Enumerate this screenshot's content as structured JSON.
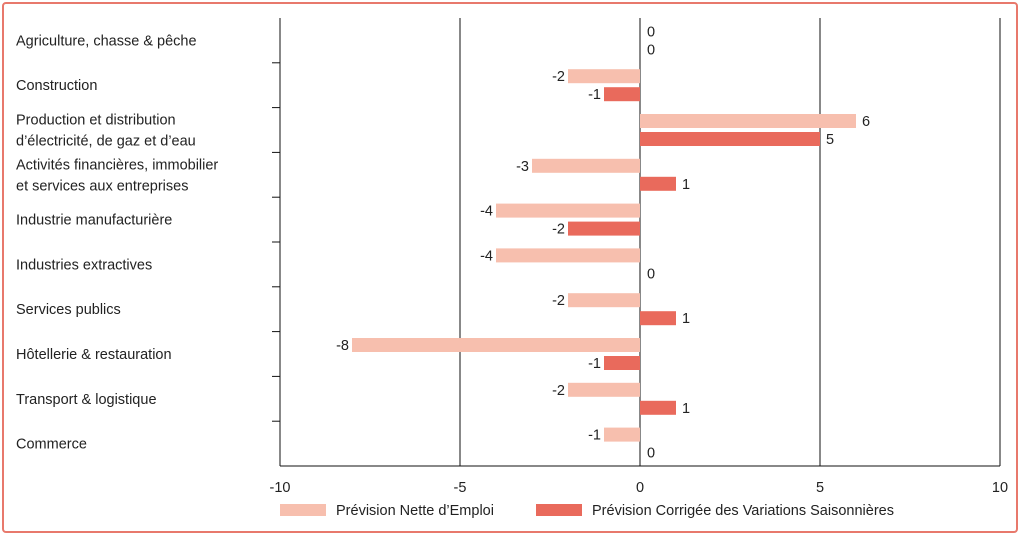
{
  "chart_data": {
    "type": "bar",
    "orientation": "horizontal",
    "categories": [
      [
        "Agriculture, chasse & pêche"
      ],
      [
        "Construction"
      ],
      [
        "Production et distribution",
        "d’électricité, de gaz et d’eau"
      ],
      [
        "Activités financières, immobilier",
        "et services aux entreprises"
      ],
      [
        "Industrie manufacturière"
      ],
      [
        "Industries extractives"
      ],
      [
        "Services publics"
      ],
      [
        "Hôtellerie & restauration"
      ],
      [
        "Transport & logistique"
      ],
      [
        "Commerce"
      ]
    ],
    "series": [
      {
        "name": "Prévision Nette d’Emploi",
        "color": "#F7BFAE",
        "values": [
          0,
          -2,
          6,
          -3,
          -4,
          -4,
          -2,
          -8,
          -2,
          -1
        ]
      },
      {
        "name": "Prévision Corrigée des Variations Saisonnières",
        "color": "#E96A5C",
        "values": [
          0,
          -1,
          5,
          1,
          -2,
          0,
          1,
          -1,
          1,
          0
        ]
      }
    ],
    "xlim": [
      -10,
      10
    ],
    "xticks": [
      -10,
      -5,
      0,
      5,
      10
    ],
    "xtick_labels": [
      "-10",
      "-5",
      "0",
      "5",
      "10"
    ],
    "grid": "vertical",
    "legend_position": "bottom"
  }
}
